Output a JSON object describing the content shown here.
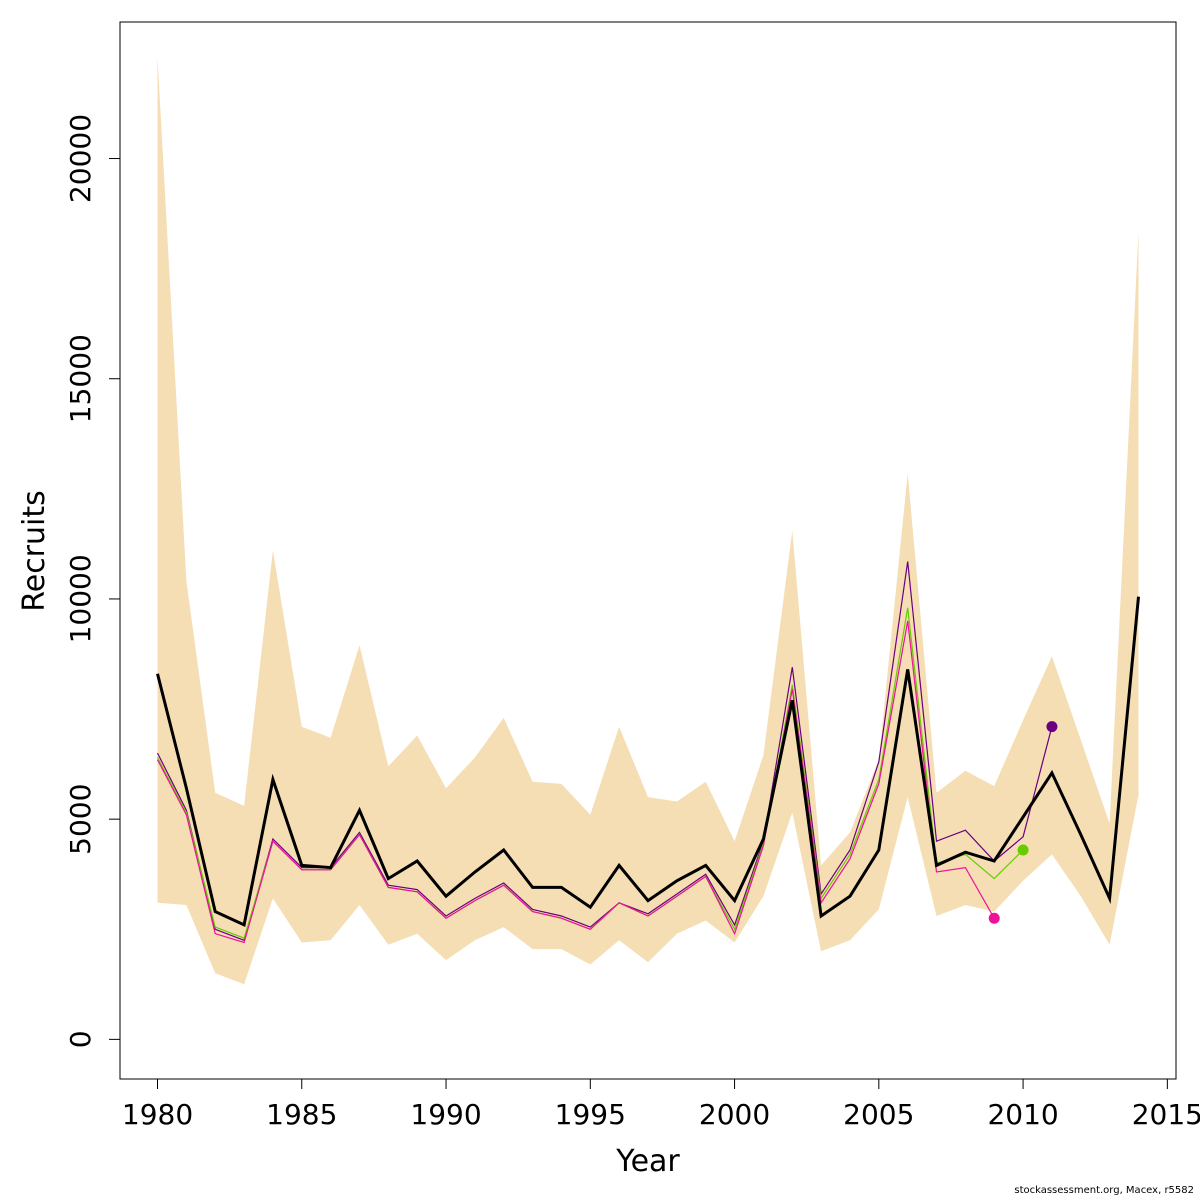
{
  "chart_data": {
    "type": "line",
    "xlabel": "Year",
    "ylabel": "Recruits",
    "xlim": [
      1978.7,
      2015.3
    ],
    "ylim": [
      -900,
      23100
    ],
    "x_ticks": [
      1980,
      1985,
      1990,
      1995,
      2000,
      2005,
      2010,
      2015
    ],
    "y_ticks": [
      0,
      5000,
      10000,
      15000,
      20000
    ],
    "grid": false,
    "band": {
      "color": "#f5deb3",
      "x": [
        1980,
        1981,
        1982,
        1983,
        1984,
        1985,
        1986,
        1987,
        1988,
        1989,
        1990,
        1991,
        1992,
        1993,
        1994,
        1995,
        1996,
        1997,
        1998,
        1999,
        2000,
        2001,
        2002,
        2003,
        2004,
        2005,
        2006,
        2007,
        2008,
        2009,
        2010,
        2011,
        2012,
        2013,
        2014
      ],
      "upper": [
        22300,
        10400,
        5600,
        5300,
        11100,
        7100,
        6850,
        8950,
        6200,
        6900,
        5700,
        6400,
        7300,
        5850,
        5800,
        5100,
        7100,
        5500,
        5400,
        5850,
        4500,
        6450,
        11550,
        3950,
        4700,
        6350,
        12850,
        5600,
        6100,
        5750,
        7250,
        8700,
        6800,
        4900,
        18350
      ],
      "lower": [
        3100,
        3050,
        1500,
        1250,
        3200,
        2200,
        2250,
        3050,
        2150,
        2400,
        1800,
        2250,
        2550,
        2050,
        2050,
        1700,
        2250,
        1750,
        2400,
        2700,
        2200,
        3250,
        5150,
        2000,
        2250,
        2950,
        5500,
        2800,
        3050,
        2900,
        3600,
        4200,
        3250,
        2150,
        5550
      ]
    },
    "series": [
      {
        "color": "#000000",
        "x": [
          1980,
          1981,
          1982,
          1983,
          1984,
          1985,
          1986,
          1987,
          1988,
          1989,
          1990,
          1991,
          1992,
          1993,
          1994,
          1995,
          1996,
          1997,
          1998,
          1999,
          2000,
          2001,
          2002,
          2003,
          2004,
          2005,
          2006,
          2007,
          2008,
          2009,
          2010,
          2011,
          2012,
          2013,
          2014
        ],
        "values": [
          8300,
          5700,
          2900,
          2600,
          5900,
          3950,
          3900,
          5200,
          3650,
          4050,
          3250,
          3800,
          4300,
          3450,
          3450,
          3000,
          3950,
          3150,
          3600,
          3950,
          3150,
          4550,
          7700,
          2800,
          3250,
          4300,
          8400,
          3950,
          4250,
          4050,
          5050,
          6050,
          4650,
          3200,
          10050
        ]
      },
      {
        "color": "#6a0080",
        "x": [
          1980,
          1981,
          1982,
          1983,
          1984,
          1985,
          1986,
          1987,
          1988,
          1989,
          1990,
          1991,
          1992,
          1993,
          1994,
          1995,
          1996,
          1997,
          1998,
          1999,
          2000,
          2001,
          2002,
          2003,
          2004,
          2005,
          2006,
          2007,
          2008,
          2009,
          2010,
          2011
        ],
        "values": [
          6500,
          5200,
          2500,
          2250,
          4550,
          3900,
          3900,
          4700,
          3500,
          3400,
          2800,
          3200,
          3550,
          2950,
          2800,
          2550,
          3100,
          2850,
          3300,
          3750,
          2600,
          4500,
          8450,
          3300,
          4300,
          6300,
          10850,
          4500,
          4750,
          4050,
          4600,
          7100
        ],
        "end_point": {
          "x": 2011,
          "value": 7100
        }
      },
      {
        "color": "#66cc00",
        "x": [
          1980,
          1981,
          1982,
          1983,
          1984,
          1985,
          1986,
          1987,
          1988,
          1989,
          1990,
          1991,
          1992,
          1993,
          1994,
          1995,
          1996,
          1997,
          1998,
          1999,
          2000,
          2001,
          2002,
          2003,
          2004,
          2005,
          2006,
          2007,
          2008,
          2009,
          2010
        ],
        "values": [
          6400,
          5150,
          2550,
          2300,
          4500,
          3850,
          3850,
          4650,
          3450,
          3350,
          2750,
          3150,
          3500,
          2900,
          2750,
          2500,
          3100,
          2800,
          3250,
          3700,
          2500,
          4450,
          8050,
          3200,
          4200,
          5900,
          9800,
          4000,
          4200,
          3650,
          4300
        ],
        "end_point": {
          "x": 2010,
          "value": 4300
        }
      },
      {
        "color": "#ee1199",
        "x": [
          1980,
          1981,
          1982,
          1983,
          1984,
          1985,
          1986,
          1987,
          1988,
          1989,
          1990,
          1991,
          1992,
          1993,
          1994,
          1995,
          1996,
          1997,
          1998,
          1999,
          2000,
          2001,
          2002,
          2003,
          2004,
          2005,
          2006,
          2007,
          2008,
          2009
        ],
        "values": [
          6350,
          5100,
          2400,
          2200,
          4500,
          3850,
          3850,
          4650,
          3450,
          3350,
          2750,
          3150,
          3500,
          2900,
          2750,
          2500,
          3100,
          2800,
          3250,
          3700,
          2400,
          4400,
          7950,
          3100,
          4100,
          5800,
          9500,
          3800,
          3900,
          2750
        ],
        "end_point": {
          "x": 2009,
          "value": 2750
        }
      }
    ]
  },
  "footer": {
    "credit": "stockassessment.org, Macex, r5582"
  }
}
